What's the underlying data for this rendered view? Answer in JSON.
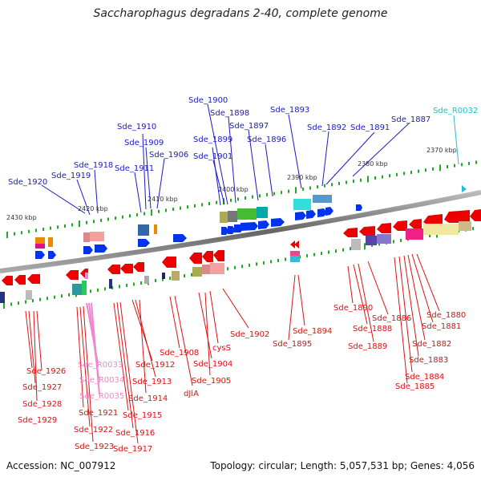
{
  "title": "Saccharophagus degradans 2-40, complete genome",
  "footer": {
    "accession": "Accession: NC_007912",
    "summary": "Topology: circular; Length: 5,057,531 bp; Genes: 4,056"
  },
  "colors": {
    "forward_label": "#1a1acc",
    "reverse_label": "#dd1111",
    "rna_label_top": "#22bbdd",
    "rna_label_bottom": "#ee88cc",
    "forward_gene": "#0033ee",
    "reverse_gene": "#ee0000",
    "backbone": "#777777",
    "tick": "#22aa22"
  },
  "scale_labels": [
    "2430 kbp",
    "2420 kbp",
    "2410 kbp",
    "2400 kbp",
    "2390 kbp",
    "2380 kbp",
    "2370 kbp"
  ],
  "top_labels": [
    "Sde_1920",
    "Sde_1919",
    "Sde_1918",
    "Sde_1911",
    "Sde_1910",
    "Sde_1909",
    "Sde_1906",
    "Sde_1900",
    "Sde_1898",
    "Sde_1899",
    "Sde_1897",
    "Sde_1901",
    "Sde_1896",
    "Sde_1893",
    "Sde_1892",
    "Sde_1891",
    "Sde_1887",
    "Sde_R0032"
  ],
  "bottom_labels": [
    "Sde_1926",
    "Sde_1927",
    "Sde_1928",
    "Sde_1929",
    "Sde_R0033",
    "Sde_R0034",
    "Sde_R0035",
    "Sde_1921",
    "Sde_1922",
    "Sde_1923",
    "Sde_1915",
    "Sde_1916",
    "Sde_1917",
    "Sde_1912",
    "Sde_1913",
    "Sde_1914",
    "Sde_1908",
    "dJlA",
    "Sde_1904",
    "Sde_1905",
    "cysS",
    "Sde_1902",
    "Sde_1894",
    "Sde_1895",
    "Sde_1890",
    "Sde_1888",
    "Sde_1889",
    "Sde_1886",
    "Sde_1880",
    "Sde_1881",
    "Sde_1882",
    "Sde_1883",
    "Sde_1884",
    "Sde_1885"
  ]
}
